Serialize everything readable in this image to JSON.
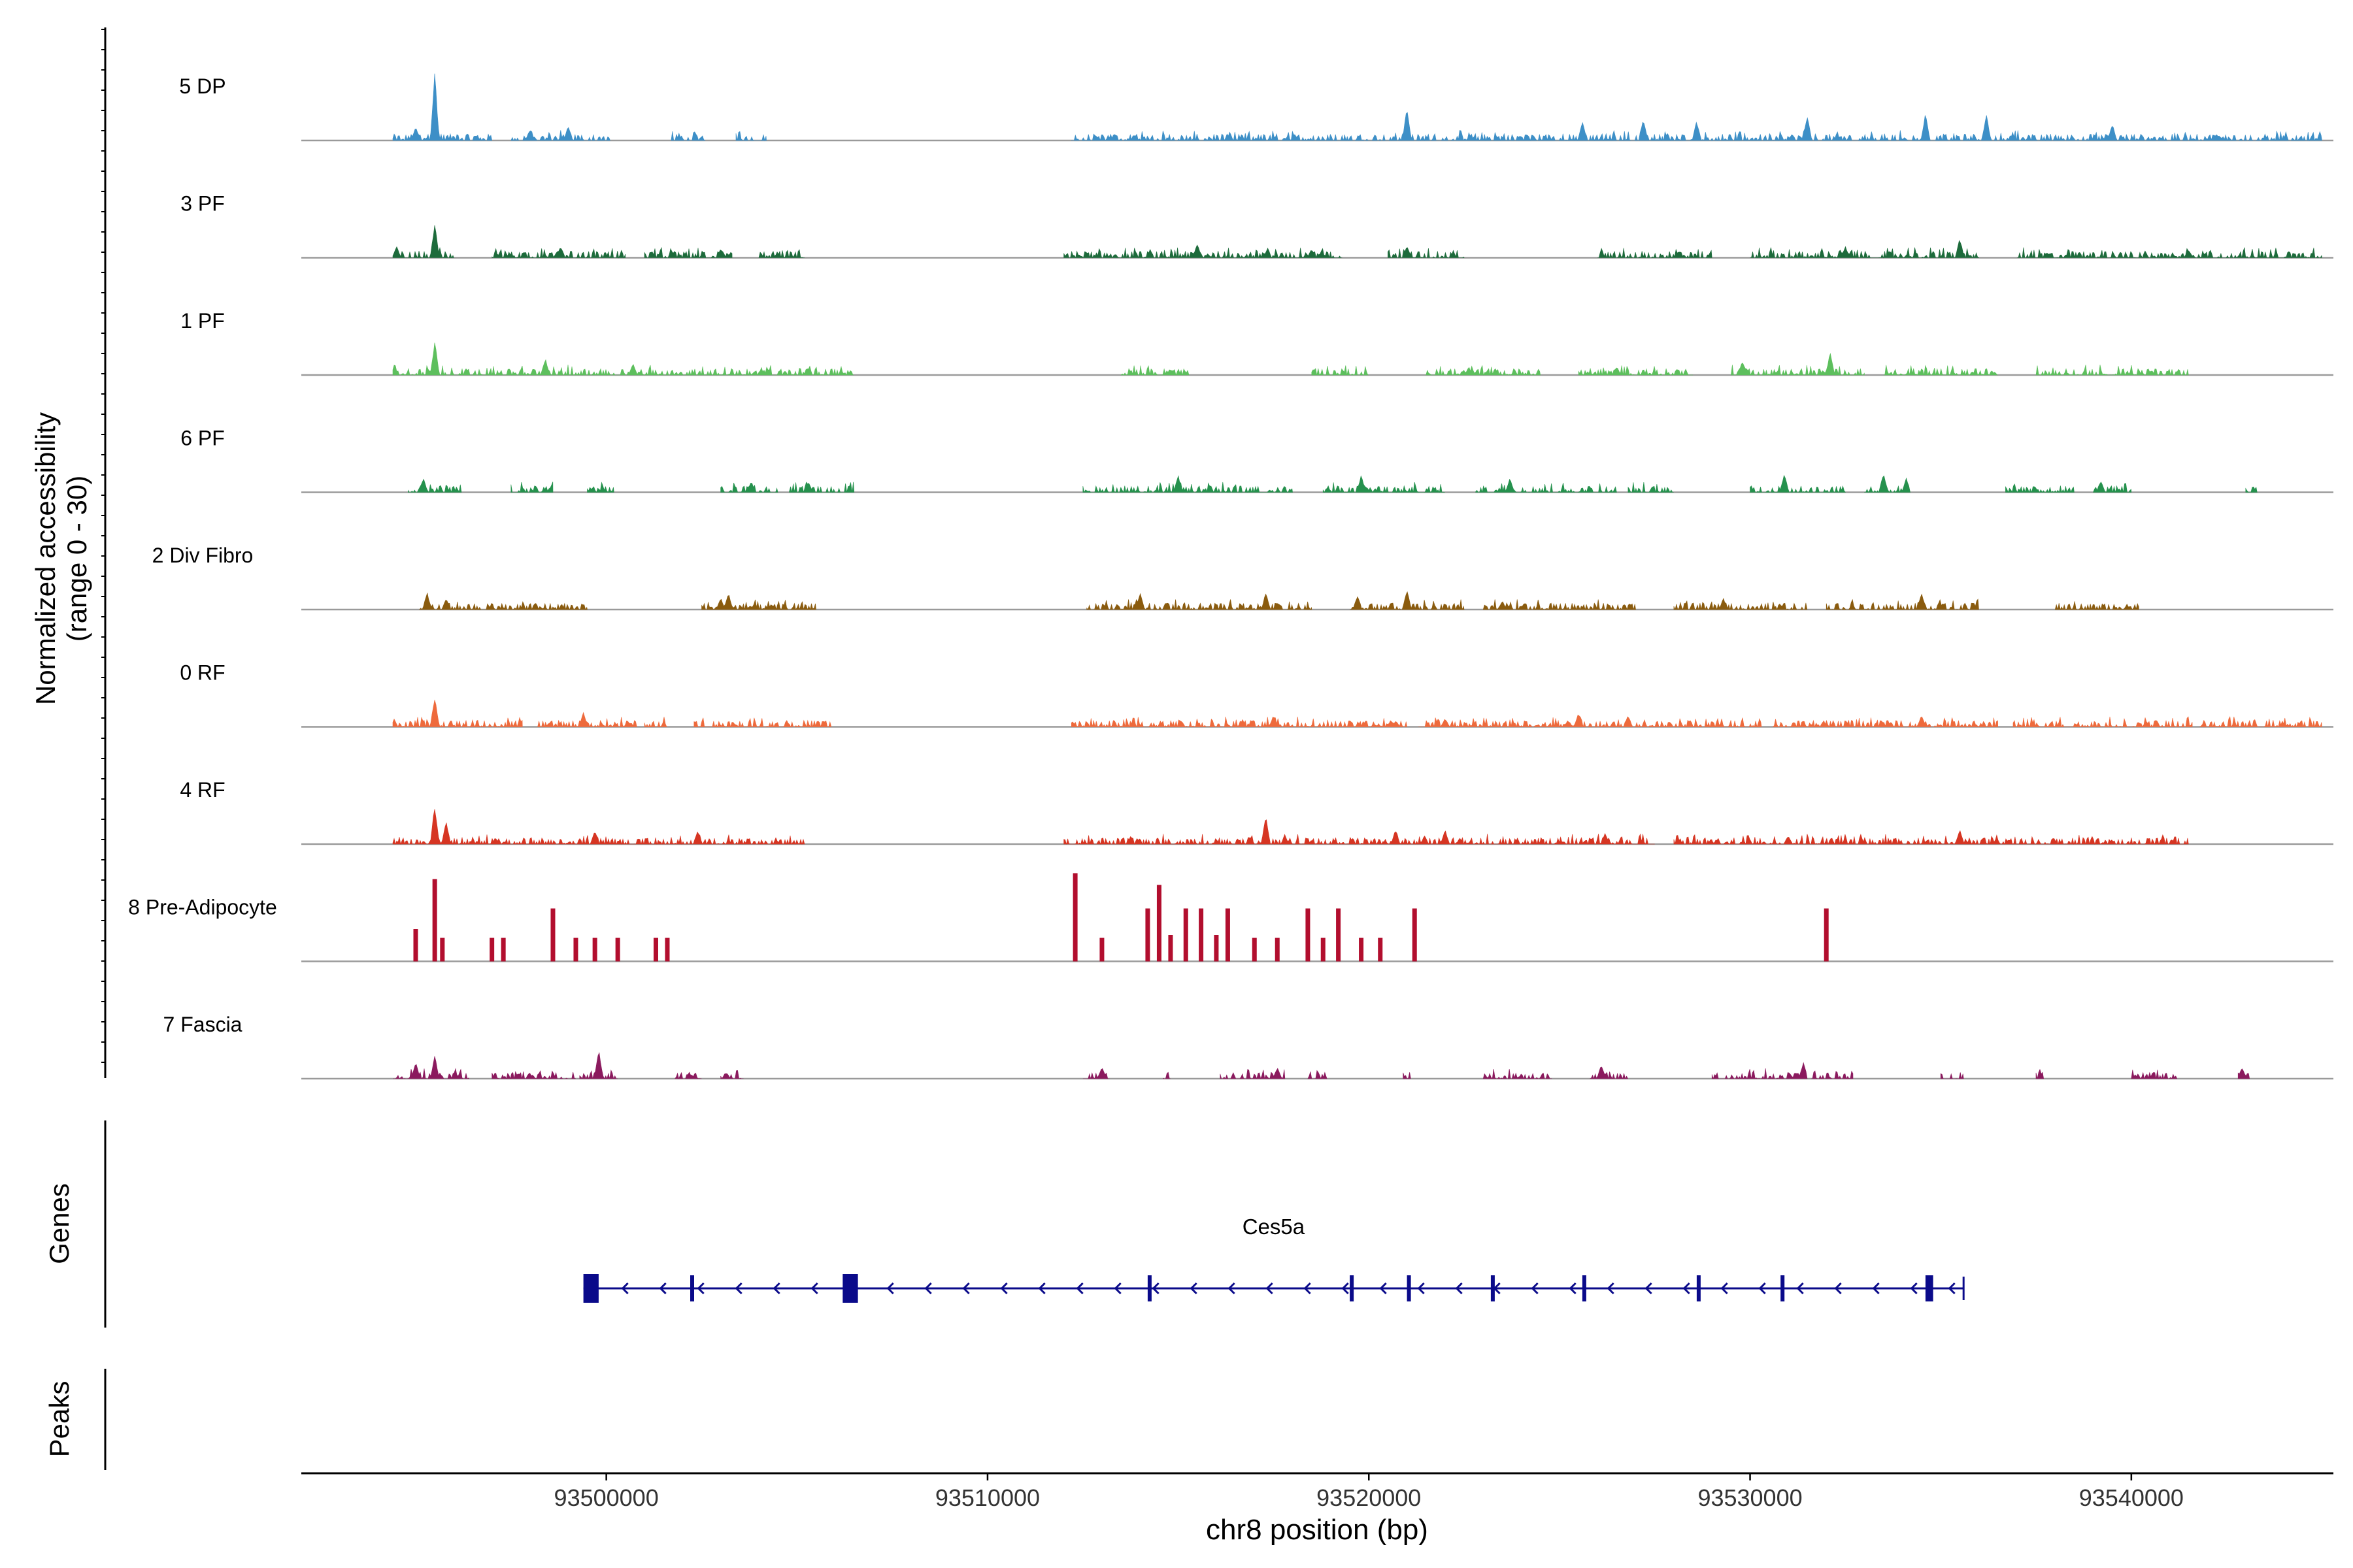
{
  "chart_data": {
    "type": "coverage-track",
    "title": "",
    "xlabel": "chr8 position (bp)",
    "ylabel": "Normalized accessibility",
    "ylabel_sub": "(range 0 - 30)",
    "xlim": [
      93492000,
      93545300
    ],
    "ylim": [
      0,
      30
    ],
    "x_ticks": [
      93500000,
      93510000,
      93520000,
      93530000,
      93540000
    ],
    "x_tick_labels": [
      "93500000",
      "93510000",
      "93520000",
      "93530000",
      "93540000"
    ],
    "tracks": [
      {
        "name": "5 DP",
        "color": "#3d8fc7",
        "ranges": [
          [
            93494400,
            93497000
          ],
          [
            93497500,
            93500100
          ],
          [
            93501700,
            93502600
          ],
          [
            93503400,
            93504200
          ],
          [
            93512200,
            93545000
          ]
        ],
        "peaks": [
          [
            93495500,
            24
          ],
          [
            93495000,
            5
          ],
          [
            93498000,
            4
          ],
          [
            93499000,
            5
          ],
          [
            93501000,
            5
          ],
          [
            93521000,
            12
          ],
          [
            93525600,
            7
          ],
          [
            93527200,
            8
          ],
          [
            93528600,
            7
          ],
          [
            93531500,
            9
          ],
          [
            93534600,
            10
          ],
          [
            93536200,
            9
          ],
          [
            93539500,
            6
          ]
        ]
      },
      {
        "name": "3 PF",
        "color": "#1d6b3b",
        "ranges": [
          [
            93494400,
            93496000
          ],
          [
            93497000,
            93500500
          ],
          [
            93501000,
            93503300
          ],
          [
            93504000,
            93505200
          ],
          [
            93512000,
            93519300
          ],
          [
            93520500,
            93522500
          ],
          [
            93526000,
            93529000
          ],
          [
            93530000,
            93536000
          ],
          [
            93537000,
            93545000
          ]
        ],
        "peaks": [
          [
            93495500,
            12
          ],
          [
            93494500,
            4
          ],
          [
            93498800,
            4
          ],
          [
            93503000,
            3
          ],
          [
            93515500,
            5
          ],
          [
            93518500,
            3
          ],
          [
            93521000,
            4
          ],
          [
            93529000,
            3
          ],
          [
            93532500,
            4
          ],
          [
            93535500,
            7
          ],
          [
            93541500,
            3
          ]
        ]
      },
      {
        "name": "1 PF",
        "color": "#5dbf5d",
        "ranges": [
          [
            93494400,
            93506500
          ],
          [
            93513500,
            93515300
          ],
          [
            93518500,
            93520000
          ],
          [
            93521500,
            93524500
          ],
          [
            93525500,
            93528500
          ],
          [
            93529500,
            93533000
          ],
          [
            93533500,
            93536500
          ],
          [
            93537500,
            93541500
          ]
        ],
        "peaks": [
          [
            93495500,
            12
          ],
          [
            93498400,
            6
          ],
          [
            93500700,
            4
          ],
          [
            93532100,
            8
          ],
          [
            93529800,
            5
          ],
          [
            93526500,
            3
          ]
        ]
      },
      {
        "name": "6 PF",
        "color": "#25914d",
        "ranges": [
          [
            93494800,
            93496200
          ],
          [
            93497500,
            93498600
          ],
          [
            93499500,
            93500200
          ],
          [
            93503000,
            93504500
          ],
          [
            93504800,
            93506500
          ],
          [
            93512500,
            93518000
          ],
          [
            93518800,
            93522000
          ],
          [
            93522800,
            93526500
          ],
          [
            93526800,
            93528000
          ],
          [
            93530000,
            93532500
          ],
          [
            93533000,
            93534200
          ],
          [
            93536700,
            93538500
          ],
          [
            93539000,
            93540000
          ],
          [
            93543000,
            93543300
          ]
        ],
        "peaks": [
          [
            93495200,
            5
          ],
          [
            93498600,
            4
          ],
          [
            93503800,
            4
          ],
          [
            93505300,
            4
          ],
          [
            93515000,
            6
          ],
          [
            93519800,
            6
          ],
          [
            93523700,
            5
          ],
          [
            93530900,
            7
          ],
          [
            93533500,
            7
          ],
          [
            93534100,
            5
          ],
          [
            93539200,
            4
          ]
        ]
      },
      {
        "name": "2 Div Fibro",
        "color": "#8a5b0e",
        "ranges": [
          [
            93495100,
            93499500
          ],
          [
            93502500,
            93505500
          ],
          [
            93512600,
            93518500
          ],
          [
            93519500,
            93522500
          ],
          [
            93523000,
            93527000
          ],
          [
            93528000,
            93531500
          ],
          [
            93532000,
            93536000
          ],
          [
            93538000,
            93540200
          ]
        ],
        "peaks": [
          [
            93495300,
            6
          ],
          [
            93495800,
            4
          ],
          [
            93501000,
            3
          ],
          [
            93503000,
            4
          ],
          [
            93503200,
            6
          ],
          [
            93514000,
            6
          ],
          [
            93517300,
            6
          ],
          [
            93519700,
            5
          ],
          [
            93521000,
            7
          ],
          [
            93523500,
            3
          ],
          [
            93529300,
            4
          ],
          [
            93534500,
            6
          ],
          [
            93536000,
            5
          ]
        ]
      },
      {
        "name": "0 RF",
        "color": "#ee6a3c",
        "ranges": [
          [
            93494400,
            93497800
          ],
          [
            93498200,
            93500800
          ],
          [
            93501000,
            93501600
          ],
          [
            93502300,
            93505900
          ],
          [
            93512200,
            93521000
          ],
          [
            93521300,
            93530300
          ],
          [
            93530600,
            93536500
          ],
          [
            93536900,
            93541600
          ],
          [
            93541800,
            93545000
          ]
        ],
        "peaks": [
          [
            93495500,
            11
          ],
          [
            93499400,
            5
          ],
          [
            93509000,
            3
          ],
          [
            93517500,
            4
          ],
          [
            93522000,
            3
          ],
          [
            93525500,
            5
          ],
          [
            93526800,
            4
          ],
          [
            93534500,
            4
          ]
        ]
      },
      {
        "name": "4 RF",
        "color": "#d63522",
        "ranges": [
          [
            93494400,
            93505200
          ],
          [
            93512000,
            93527500
          ],
          [
            93528000,
            93541500
          ]
        ],
        "peaks": [
          [
            93495500,
            14
          ],
          [
            93495800,
            8
          ],
          [
            93499700,
            5
          ],
          [
            93502400,
            5
          ],
          [
            93517300,
            10
          ],
          [
            93520700,
            5
          ],
          [
            93522000,
            5
          ],
          [
            93526200,
            4
          ],
          [
            93531000,
            3
          ],
          [
            93535500,
            5
          ]
        ]
      },
      {
        "name": "8 Pre-Adipocyte",
        "color": "#b20e2e",
        "bars": [
          [
            93495000,
            11
          ],
          [
            93495500,
            28
          ],
          [
            93495700,
            8
          ],
          [
            93497000,
            8
          ],
          [
            93497300,
            8
          ],
          [
            93498600,
            18
          ],
          [
            93499200,
            8
          ],
          [
            93499700,
            8
          ],
          [
            93500300,
            8
          ],
          [
            93501300,
            8
          ],
          [
            93501600,
            8
          ],
          [
            93512300,
            30
          ],
          [
            93513000,
            8
          ],
          [
            93514200,
            18
          ],
          [
            93514500,
            26
          ],
          [
            93514800,
            9
          ],
          [
            93515200,
            18
          ],
          [
            93515600,
            18
          ],
          [
            93516000,
            9
          ],
          [
            93516300,
            18
          ],
          [
            93517000,
            8
          ],
          [
            93517600,
            8
          ],
          [
            93518400,
            18
          ],
          [
            93518800,
            8
          ],
          [
            93519200,
            18
          ],
          [
            93519800,
            8
          ],
          [
            93520300,
            8
          ],
          [
            93521200,
            18
          ],
          [
            93532000,
            18
          ]
        ]
      },
      {
        "name": "7 Fascia",
        "color": "#8b1a5e",
        "ranges": [
          [
            93494400,
            93496400
          ],
          [
            93497000,
            93499200
          ],
          [
            93499300,
            93500300
          ],
          [
            93501800,
            93502500
          ],
          [
            93503000,
            93503600
          ],
          [
            93512500,
            93513200
          ],
          [
            93514600,
            93514800
          ],
          [
            93516100,
            93517800
          ],
          [
            93518400,
            93518900
          ],
          [
            93520900,
            93521100
          ],
          [
            93523000,
            93524800
          ],
          [
            93525800,
            93526800
          ],
          [
            93529000,
            93531500
          ],
          [
            93531600,
            93532700
          ],
          [
            93535000,
            93535600
          ],
          [
            93537500,
            93537700
          ],
          [
            93540000,
            93541200
          ],
          [
            93542800,
            93543100
          ]
        ],
        "peaks": [
          [
            93495000,
            6
          ],
          [
            93495500,
            8
          ],
          [
            93499800,
            10
          ],
          [
            93513000,
            4
          ],
          [
            93517600,
            4
          ],
          [
            93526100,
            5
          ],
          [
            93531400,
            6
          ],
          [
            93542900,
            4
          ]
        ]
      }
    ],
    "genes": [
      {
        "name": "Ces5a",
        "strand": "-",
        "start": 93499400,
        "end": 93535600,
        "exons": [
          [
            93499400,
            93499800
          ],
          [
            93502200,
            93502300
          ],
          [
            93506200,
            93506600
          ],
          [
            93514200,
            93514300
          ],
          [
            93519500,
            93519600
          ],
          [
            93521000,
            93521100
          ],
          [
            93523200,
            93523300
          ],
          [
            93525600,
            93525700
          ],
          [
            93528600,
            93528700
          ],
          [
            93530800,
            93530900
          ],
          [
            93534600,
            93534800
          ]
        ]
      }
    ],
    "panels": [
      "Genes",
      "Peaks"
    ]
  }
}
